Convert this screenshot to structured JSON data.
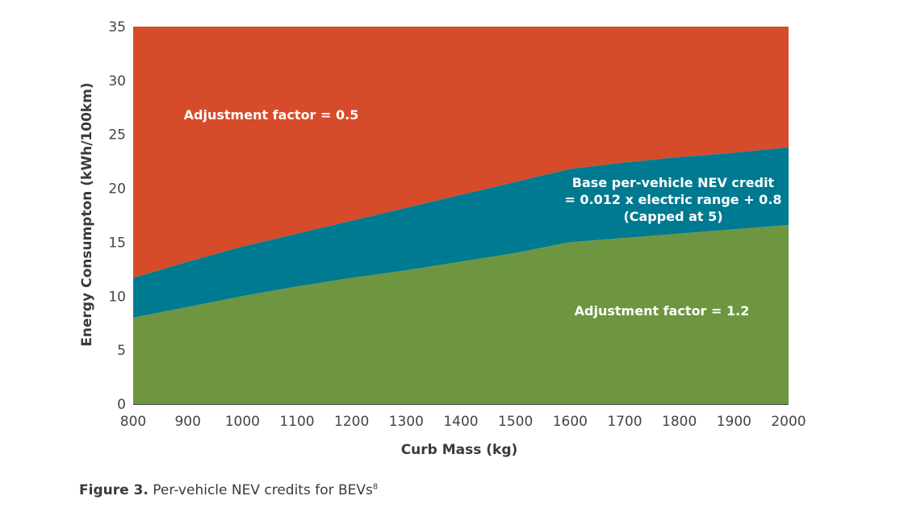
{
  "chart_data": {
    "type": "area",
    "xlabel": "Curb Mass (kg)",
    "ylabel": "Energy Consumpton (kWh/100km)",
    "xlim": [
      800,
      2000
    ],
    "ylim": [
      0,
      35
    ],
    "x_ticks": [
      800,
      900,
      1000,
      1100,
      1200,
      1300,
      1400,
      1500,
      1600,
      1700,
      1800,
      1900,
      2000
    ],
    "y_ticks": [
      0,
      5,
      10,
      15,
      20,
      25,
      30,
      35
    ],
    "x": [
      800,
      900,
      1000,
      1100,
      1200,
      1300,
      1400,
      1500,
      1600,
      1700,
      1800,
      1900,
      2000
    ],
    "lower_boundary": [
      8.0,
      9.0,
      10.0,
      10.9,
      11.7,
      12.4,
      13.2,
      14.0,
      15.0,
      15.4,
      15.8,
      16.2,
      16.6
    ],
    "upper_boundary": [
      11.7,
      13.2,
      14.6,
      15.8,
      17.0,
      18.2,
      19.4,
      20.6,
      21.8,
      22.4,
      22.9,
      23.3,
      23.8
    ],
    "regions": [
      {
        "color": "#6e9640",
        "label": "Adjustment factor = 1.2"
      },
      {
        "color": "#007a91",
        "label_lines": [
          "Base per-vehicle NEV credit",
          "= 0.012 x  electric range + 0.8",
          "(Capped at 5)"
        ]
      },
      {
        "color": "#d64b29",
        "label": "Adjustment factor = 0.5"
      }
    ],
    "grid": false,
    "legend": "none"
  },
  "caption": {
    "figure_label": "Figure 3.",
    "text": " Per-vehicle NEV credits for BEVs",
    "footnote": "8"
  }
}
